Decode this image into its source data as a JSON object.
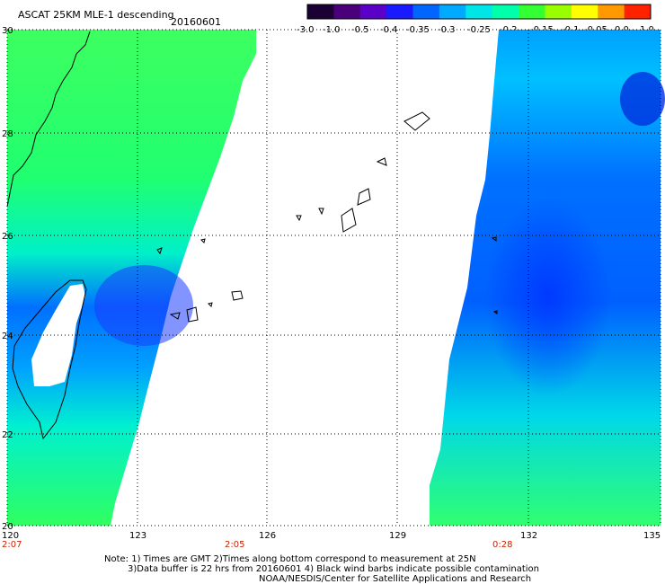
{
  "title": "ASCAT 25KM MLE-1 descending",
  "date": "20160601",
  "colorbar": {
    "labels": [
      "-3.0",
      "-1.0",
      "-0.5",
      "-0.4",
      "-0.35",
      "-0.3",
      "-0.25",
      "-0.2",
      "-0.15",
      "-0.1",
      "-0.05",
      "0.0",
      "1.0"
    ],
    "colors": [
      "#1a0033",
      "#4a007a",
      "#5a00c8",
      "#1a1aff",
      "#0066ff",
      "#00aaff",
      "#00e6e6",
      "#00ffaa",
      "#33ff33",
      "#99ff00",
      "#ffff00",
      "#ff9900",
      "#ff2200"
    ]
  },
  "map": {
    "lon_range": [
      120,
      135
    ],
    "lat_range": [
      20,
      30
    ],
    "lat_ticks": [
      "30",
      "28",
      "26",
      "24",
      "22",
      "20"
    ],
    "lon_ticks": [
      "120",
      "123",
      "126",
      "129",
      "132",
      "135"
    ],
    "time_marks": [
      {
        "label": "2:07",
        "lon": 120
      },
      {
        "label": "2:05",
        "lon": 125
      },
      {
        "label": "0:28",
        "lon": 131.5
      }
    ]
  },
  "notes": {
    "line1": "Note: 1) Times are GMT 2)Times along bottom correspond to measurement at 25N",
    "line2": "3)Data buffer is 22 hrs from 20160601 4) Black wind barbs indicate possible contamination",
    "line3": "NOAA/NESDIS/Center for Satellite Applications and Research"
  }
}
